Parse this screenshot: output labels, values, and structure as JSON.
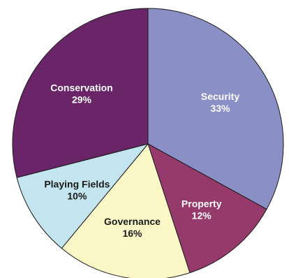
{
  "chart_data": {
    "type": "pie",
    "title": "",
    "start_angle_deg": 0,
    "direction": "clockwise",
    "slices": [
      {
        "name": "Security",
        "value": 33,
        "label": "33%",
        "color": "#8a8fc6",
        "text_color": "#ffffff"
      },
      {
        "name": "Property",
        "value": 12,
        "label": "12%",
        "color": "#963a6c",
        "text_color": "#ffffff"
      },
      {
        "name": "Governance",
        "value": 16,
        "label": "16%",
        "color": "#fbf7c7",
        "text_color": "#1a1a1a"
      },
      {
        "name": "Playing Fields",
        "value": 10,
        "label": "10%",
        "color": "#c3e5ef",
        "text_color": "#1a1a1a"
      },
      {
        "name": "Conservation",
        "value": 29,
        "label": "29%",
        "color": "#6a2568",
        "text_color": "#ffffff"
      }
    ]
  }
}
